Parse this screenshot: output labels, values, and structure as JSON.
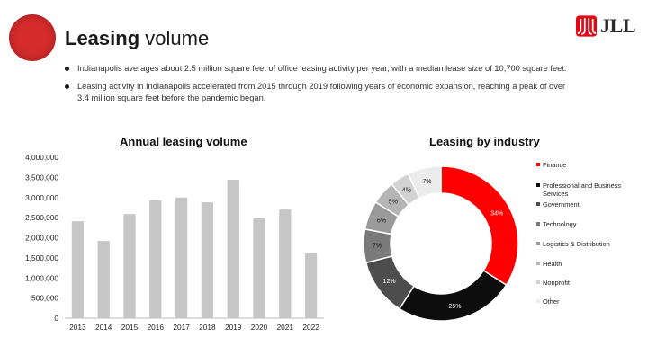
{
  "slide": {
    "title_bold": "Leasing",
    "title_rest": " volume",
    "bullets": [
      "Indianapolis averages about 2.5 million square feet of office leasing activity per year, with a median lease size of 10,700 square feet.",
      "Leasing activity in Indianapolis accelerated from 2015 through 2019 following years of economic expansion, reaching a peak of over 3.4 million square feet before the pandemic began."
    ],
    "logo_text": "JLL",
    "brand_color": "#d42b2b"
  },
  "chart_data": [
    {
      "type": "bar",
      "title": "Annual leasing volume",
      "categories": [
        "2013",
        "2014",
        "2015",
        "2016",
        "2017",
        "2018",
        "2019",
        "2020",
        "2021",
        "2022"
      ],
      "values": [
        2410000,
        1920000,
        2590000,
        2930000,
        3000000,
        2880000,
        3440000,
        2500000,
        2700000,
        1610000
      ],
      "ylim": [
        0,
        4000000
      ],
      "yticks": [
        0,
        500000,
        1000000,
        1500000,
        2000000,
        2500000,
        3000000,
        3500000,
        4000000
      ],
      "ytick_labels": [
        "0",
        "500,000",
        "1,000,000",
        "1,500,000",
        "2,000,000",
        "2,500,000",
        "3,000,000",
        "3,500,000",
        "4,000,000"
      ],
      "bar_color": "#c6c6c6",
      "grid": false
    },
    {
      "type": "pie",
      "title": "Leasing by industry",
      "donut": true,
      "labels": [
        "Finance",
        "Professional and Business Services",
        "Government",
        "Technology",
        "Logistics & Distribution",
        "Health",
        "Nonprofit",
        "Other"
      ],
      "values": [
        34,
        25,
        12,
        7,
        6,
        5,
        4,
        7
      ],
      "slice_labels": [
        "34%",
        "25%",
        "12%",
        "7%",
        "6%",
        "5%",
        "4%",
        "7%"
      ],
      "colors": [
        "#ff0000",
        "#0d0d0d",
        "#4d4d4d",
        "#7a7a7a",
        "#9a9a9a",
        "#b5b5b5",
        "#d2d2d2",
        "#ececec"
      ],
      "legend_position": "right"
    }
  ]
}
